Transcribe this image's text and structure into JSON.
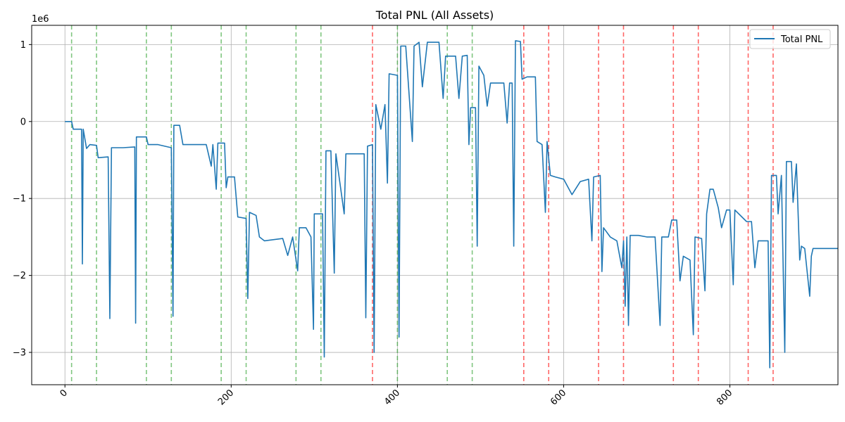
{
  "chart_data": {
    "type": "line",
    "title": "Total PNL (All Assets)",
    "xlabel": "",
    "ylabel": "",
    "y_multiplier_label": "1e6",
    "xlim": [
      -40,
      930
    ],
    "ylim": [
      -3.42,
      1.25
    ],
    "x_ticks": [
      0,
      200,
      400,
      600,
      800
    ],
    "x_tick_labels": [
      "0",
      "200",
      "400",
      "600",
      "800"
    ],
    "y_ticks": [
      -3,
      -2,
      -1,
      0,
      1
    ],
    "y_tick_labels": [
      "−3",
      "−2",
      "−1",
      "0",
      "1"
    ],
    "grid": true,
    "legend_position": "top-right",
    "series": [
      {
        "name": "Total PNL",
        "color": "#1f77b4",
        "points": [
          [
            0,
            0
          ],
          [
            8,
            0
          ],
          [
            10,
            -0.1
          ],
          [
            20,
            -0.1
          ],
          [
            21,
            -1.85
          ],
          [
            22,
            -0.1
          ],
          [
            26,
            -0.35
          ],
          [
            30,
            -0.3
          ],
          [
            38,
            -0.31
          ],
          [
            40,
            -0.47
          ],
          [
            52,
            -0.46
          ],
          [
            54,
            -2.56
          ],
          [
            56,
            -0.34
          ],
          [
            70,
            -0.34
          ],
          [
            84,
            -0.33
          ],
          [
            85,
            -2.62
          ],
          [
            86,
            -0.2
          ],
          [
            98,
            -0.2
          ],
          [
            100,
            -0.3
          ],
          [
            112,
            -0.3
          ],
          [
            128,
            -0.34
          ],
          [
            130,
            -2.53
          ],
          [
            131,
            -0.05
          ],
          [
            138,
            -0.05
          ],
          [
            142,
            -0.3
          ],
          [
            160,
            -0.3
          ],
          [
            170,
            -0.3
          ],
          [
            176,
            -0.58
          ],
          [
            178,
            -0.3
          ],
          [
            182,
            -0.88
          ],
          [
            184,
            -0.28
          ],
          [
            192,
            -0.28
          ],
          [
            194,
            -0.86
          ],
          [
            196,
            -0.72
          ],
          [
            204,
            -0.72
          ],
          [
            208,
            -1.24
          ],
          [
            218,
            -1.26
          ],
          [
            220,
            -2.3
          ],
          [
            222,
            -1.18
          ],
          [
            230,
            -1.22
          ],
          [
            234,
            -1.5
          ],
          [
            240,
            -1.55
          ],
          [
            262,
            -1.52
          ],
          [
            268,
            -1.74
          ],
          [
            274,
            -1.5
          ],
          [
            280,
            -1.94
          ],
          [
            282,
            -1.38
          ],
          [
            290,
            -1.38
          ],
          [
            296,
            -1.5
          ],
          [
            299,
            -2.7
          ],
          [
            300,
            -1.2
          ],
          [
            310,
            -1.2
          ],
          [
            312,
            -3.06
          ],
          [
            314,
            -0.38
          ],
          [
            320,
            -0.38
          ],
          [
            324,
            -1.97
          ],
          [
            326,
            -0.42
          ],
          [
            336,
            -1.2
          ],
          [
            338,
            -0.42
          ],
          [
            360,
            -0.42
          ],
          [
            362,
            -2.55
          ],
          [
            364,
            -0.32
          ],
          [
            370,
            -0.3
          ],
          [
            372,
            -3.0
          ],
          [
            374,
            0.22
          ],
          [
            380,
            -0.1
          ],
          [
            385,
            0.22
          ],
          [
            388,
            -0.8
          ],
          [
            390,
            0.62
          ],
          [
            400,
            0.6
          ],
          [
            402,
            -2.8
          ],
          [
            404,
            0.98
          ],
          [
            410,
            0.98
          ],
          [
            418,
            -0.26
          ],
          [
            420,
            0.98
          ],
          [
            426,
            1.03
          ],
          [
            430,
            0.45
          ],
          [
            436,
            1.03
          ],
          [
            450,
            1.03
          ],
          [
            455,
            0.3
          ],
          [
            458,
            0.85
          ],
          [
            470,
            0.85
          ],
          [
            474,
            0.3
          ],
          [
            478,
            0.85
          ],
          [
            484,
            0.86
          ],
          [
            486,
            -0.3
          ],
          [
            488,
            0.18
          ],
          [
            494,
            0.18
          ],
          [
            496,
            -1.62
          ],
          [
            498,
            0.72
          ],
          [
            504,
            0.6
          ],
          [
            508,
            0.2
          ],
          [
            512,
            0.5
          ],
          [
            522,
            0.5
          ],
          [
            528,
            0.5
          ],
          [
            532,
            -0.02
          ],
          [
            535,
            0.5
          ],
          [
            538,
            0.5
          ],
          [
            540,
            -1.62
          ],
          [
            542,
            1.05
          ],
          [
            548,
            1.04
          ],
          [
            550,
            0.55
          ],
          [
            556,
            0.58
          ],
          [
            566,
            0.58
          ],
          [
            568,
            -0.26
          ],
          [
            574,
            -0.3
          ],
          [
            578,
            -1.18
          ],
          [
            580,
            -0.26
          ],
          [
            584,
            -0.7
          ],
          [
            590,
            -0.72
          ],
          [
            600,
            -0.75
          ],
          [
            610,
            -0.95
          ],
          [
            620,
            -0.78
          ],
          [
            630,
            -0.75
          ],
          [
            634,
            -1.55
          ],
          [
            636,
            -0.72
          ],
          [
            644,
            -0.7
          ],
          [
            646,
            -1.95
          ],
          [
            648,
            -1.38
          ],
          [
            656,
            -1.5
          ],
          [
            664,
            -1.55
          ],
          [
            670,
            -1.9
          ],
          [
            672,
            -1.55
          ],
          [
            674,
            -2.4
          ],
          [
            676,
            -1.5
          ],
          [
            678,
            -2.65
          ],
          [
            680,
            -1.48
          ],
          [
            690,
            -1.48
          ],
          [
            700,
            -1.5
          ],
          [
            710,
            -1.5
          ],
          [
            716,
            -2.65
          ],
          [
            718,
            -1.5
          ],
          [
            726,
            -1.5
          ],
          [
            730,
            -1.28
          ],
          [
            736,
            -1.28
          ],
          [
            740,
            -2.07
          ],
          [
            744,
            -1.75
          ],
          [
            752,
            -1.8
          ],
          [
            756,
            -2.77
          ],
          [
            758,
            -1.5
          ],
          [
            766,
            -1.52
          ],
          [
            770,
            -2.2
          ],
          [
            772,
            -1.2
          ],
          [
            776,
            -0.88
          ],
          [
            780,
            -0.88
          ],
          [
            786,
            -1.12
          ],
          [
            790,
            -1.38
          ],
          [
            796,
            -1.15
          ],
          [
            800,
            -1.15
          ],
          [
            804,
            -2.12
          ],
          [
            806,
            -1.15
          ],
          [
            820,
            -1.3
          ],
          [
            826,
            -1.3
          ],
          [
            830,
            -1.9
          ],
          [
            834,
            -1.55
          ],
          [
            846,
            -1.55
          ],
          [
            848,
            -3.2
          ],
          [
            850,
            -0.7
          ],
          [
            856,
            -0.7
          ],
          [
            858,
            -1.2
          ],
          [
            862,
            -0.7
          ],
          [
            866,
            -3.0
          ],
          [
            868,
            -0.52
          ],
          [
            874,
            -0.52
          ],
          [
            876,
            -1.05
          ],
          [
            880,
            -0.55
          ],
          [
            884,
            -1.8
          ],
          [
            886,
            -1.62
          ],
          [
            890,
            -1.65
          ],
          [
            896,
            -2.27
          ],
          [
            898,
            -1.75
          ],
          [
            900,
            -1.65
          ],
          [
            930,
            -1.65
          ]
        ]
      }
    ],
    "vertical_lines": [
      {
        "color": "#2ca02c",
        "x": [
          8,
          38,
          98,
          128,
          188,
          218,
          278,
          308,
          400,
          460,
          490
        ]
      },
      {
        "color": "#ff0000",
        "x": [
          370,
          552,
          582,
          642,
          672,
          732,
          762,
          822,
          852
        ]
      }
    ]
  }
}
